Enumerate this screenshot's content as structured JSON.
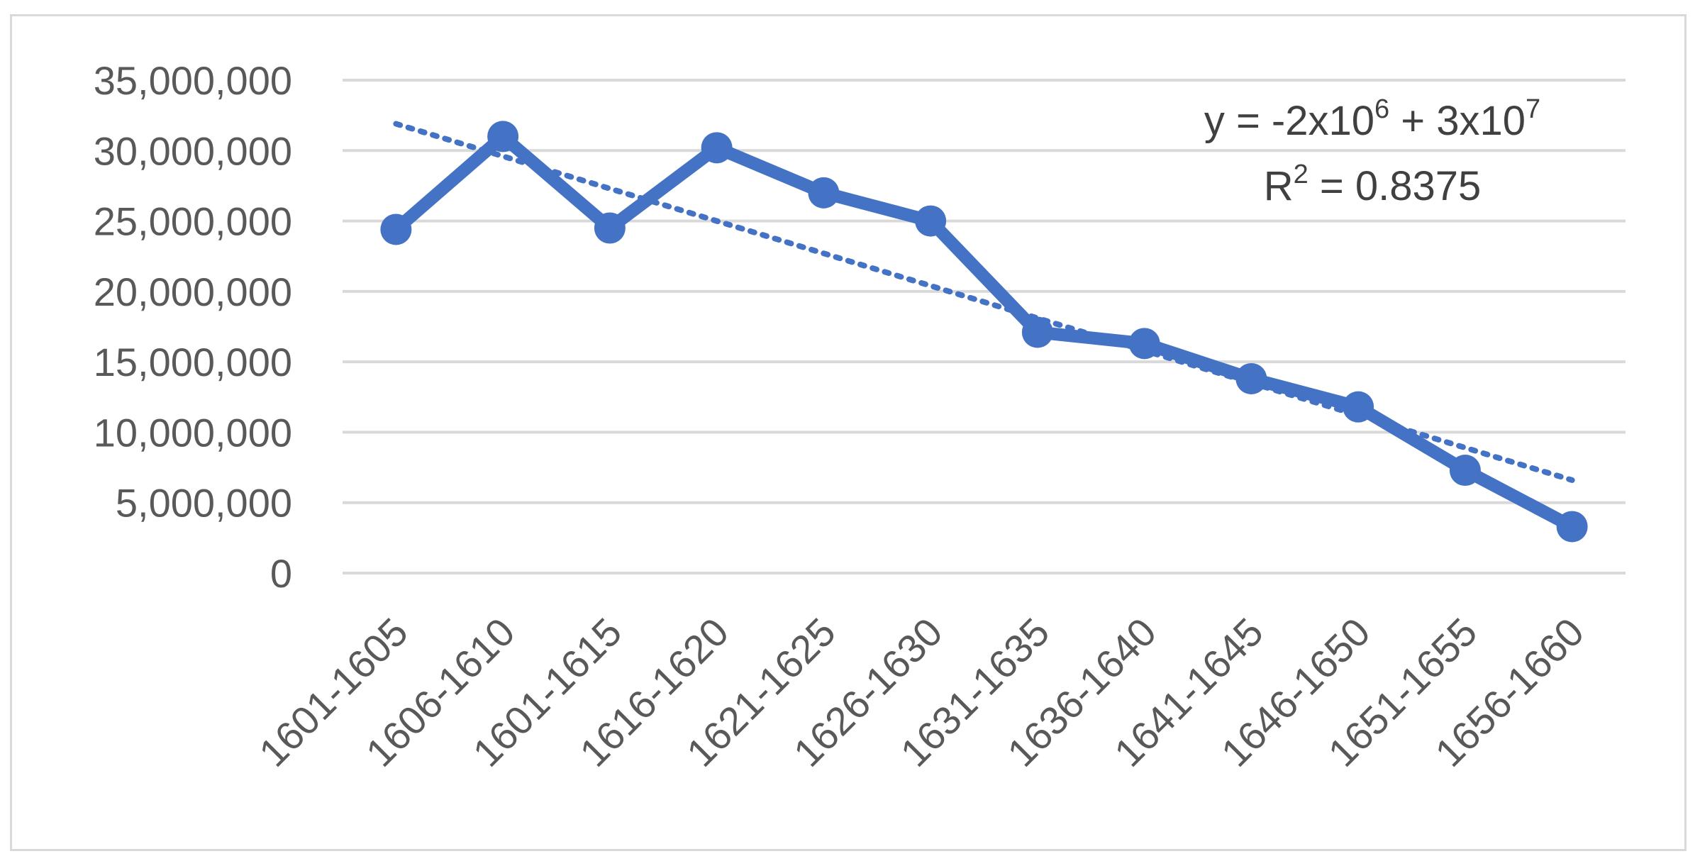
{
  "chart_data": {
    "type": "line",
    "title": "",
    "xlabel": "",
    "ylabel": "",
    "categories": [
      "1601-1605",
      "1606-1610",
      "1601-1615",
      "1616-1620",
      "1621-1625",
      "1626-1630",
      "1631-1635",
      "1636-1640",
      "1641-1645",
      "1646-1650",
      "1651-1655",
      "1656-1660"
    ],
    "series": [
      {
        "values": [
          24400000,
          31000000,
          24500000,
          30200000,
          27000000,
          25000000,
          17100000,
          16300000,
          13800000,
          11800000,
          7300000,
          3300000
        ],
        "color": "#4472c4"
      }
    ],
    "trendline": {
      "type": "linear",
      "style": "dotted",
      "start": 31900000,
      "end": 6600000,
      "color": "#4472c4"
    },
    "annotation": {
      "equation_prefix": "y = -2x10",
      "equation_exp1": "6",
      "equation_mid": " + 3x10",
      "equation_exp2": "7",
      "r2_prefix": "R",
      "r2_exp": "2",
      "r2_value": " = 0.8375"
    },
    "ylim": [
      0,
      35000000
    ],
    "ytick_labels": [
      "0",
      "5,000,000",
      "10,000,000",
      "15,000,000",
      "20,000,000",
      "25,000,000",
      "30,000,000",
      "35,000,000"
    ],
    "grid": true,
    "legend": "none"
  }
}
